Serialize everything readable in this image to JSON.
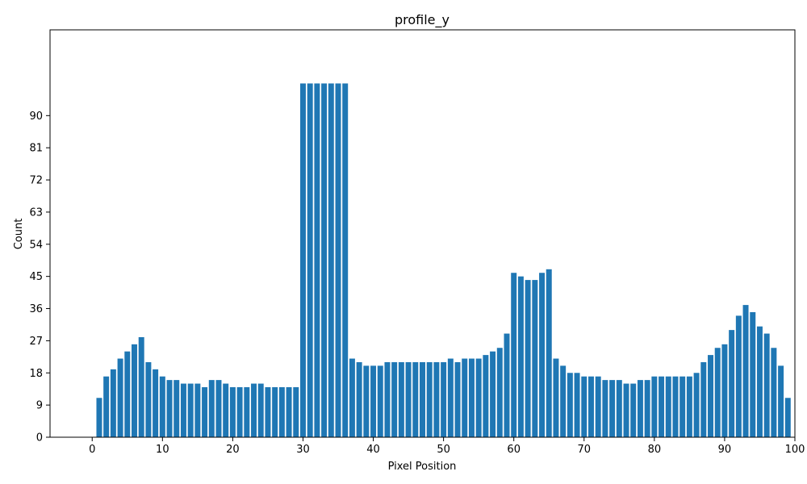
{
  "chart_data": {
    "type": "bar",
    "title": "profile_y",
    "xlabel": "Pixel Position",
    "ylabel": "Count",
    "xlim": [
      -6,
      100
    ],
    "ylim": [
      0,
      114
    ],
    "x_ticks": [
      0,
      10,
      20,
      30,
      40,
      50,
      60,
      70,
      80,
      90,
      100
    ],
    "y_ticks": [
      0,
      9,
      18,
      27,
      36,
      45,
      54,
      63,
      72,
      81,
      90
    ],
    "bar_color": "#1f77b4",
    "grid": false,
    "x": [
      1,
      2,
      3,
      4,
      5,
      6,
      7,
      8,
      9,
      10,
      11,
      12,
      13,
      14,
      15,
      16,
      17,
      18,
      19,
      20,
      21,
      22,
      23,
      24,
      25,
      26,
      27,
      28,
      29,
      30,
      31,
      32,
      33,
      34,
      35,
      36,
      37,
      38,
      39,
      40,
      41,
      42,
      43,
      44,
      45,
      46,
      47,
      48,
      49,
      50,
      51,
      52,
      53,
      54,
      55,
      56,
      57,
      58,
      59,
      60,
      61,
      62,
      63,
      64,
      65,
      66,
      67,
      68,
      69,
      70,
      71,
      72,
      73,
      74,
      75,
      76,
      77,
      78,
      79,
      80,
      81,
      82,
      83,
      84,
      85,
      86,
      87,
      88,
      89,
      90,
      91,
      92,
      93,
      94,
      95,
      96,
      97,
      98,
      99
    ],
    "values": [
      11,
      17,
      19,
      22,
      24,
      26,
      28,
      21,
      19,
      17,
      16,
      16,
      15,
      15,
      15,
      14,
      16,
      16,
      15,
      14,
      14,
      14,
      15,
      15,
      14,
      14,
      14,
      14,
      14,
      99,
      99,
      99,
      99,
      99,
      99,
      99,
      22,
      21,
      20,
      20,
      20,
      21,
      21,
      21,
      21,
      21,
      21,
      21,
      21,
      21,
      22,
      21,
      22,
      22,
      22,
      23,
      24,
      25,
      29,
      46,
      45,
      44,
      44,
      46,
      47,
      22,
      20,
      18,
      18,
      17,
      17,
      17,
      16,
      16,
      16,
      15,
      15,
      16,
      16,
      17,
      17,
      17,
      17,
      17,
      17,
      18,
      21,
      23,
      25,
      26,
      30,
      34,
      37,
      35,
      31,
      29,
      25,
      20,
      11
    ]
  }
}
